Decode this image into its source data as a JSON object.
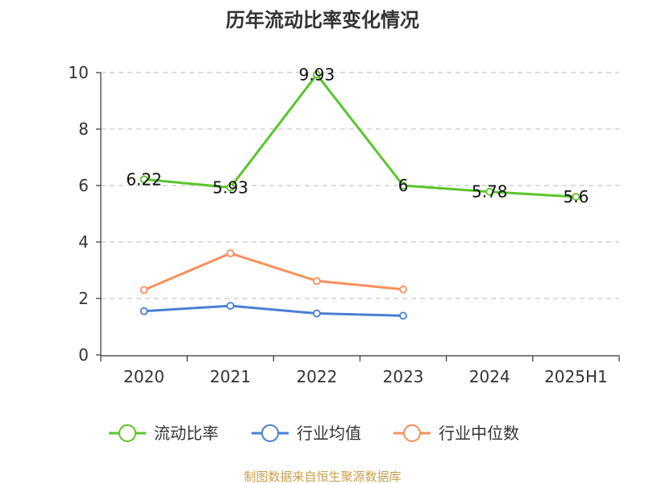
{
  "chart_data": {
    "type": "line",
    "title": "历年流动比率变化情况",
    "categories": [
      "2020",
      "2021",
      "2022",
      "2023",
      "2024",
      "2025H1"
    ],
    "ylim": [
      0,
      10
    ],
    "yticks": [
      "0",
      "2",
      "4",
      "6",
      "8",
      "10"
    ],
    "grid": true,
    "legend_position": "bottom",
    "series": [
      {
        "name": "流动比率",
        "color": "#5cc42b",
        "values": [
          6.22,
          5.93,
          9.93,
          6,
          5.78,
          5.6
        ],
        "labels": [
          "6.22",
          "5.93",
          "9.93",
          "6",
          "5.78",
          "5.6"
        ]
      },
      {
        "name": "行业均值",
        "color": "#4a7fd4",
        "values": [
          1.55,
          1.74,
          1.47,
          1.39,
          null,
          null
        ]
      },
      {
        "name": "行业中位数",
        "color": "#f8905a",
        "values": [
          2.3,
          3.6,
          2.62,
          2.32,
          null,
          null
        ]
      }
    ]
  },
  "source_text": "制图数据来自恒生聚源数据库",
  "source_color": "#c8a04a"
}
